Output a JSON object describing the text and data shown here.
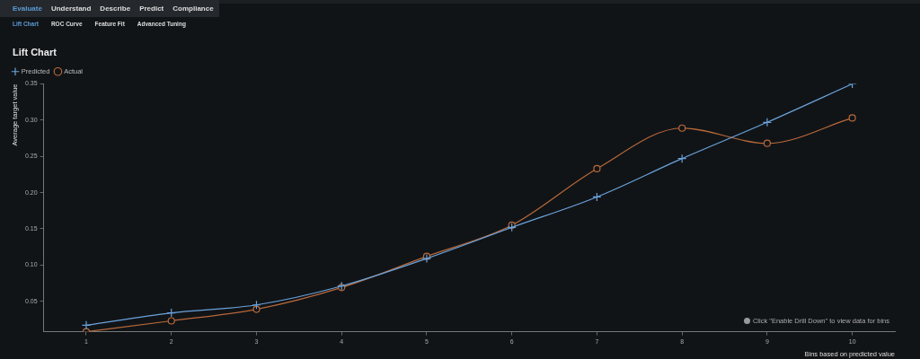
{
  "chart_data": {
    "type": "line",
    "title": "Lift Chart",
    "xlabel": "Bins based on predicted value",
    "ylabel": "Average target value",
    "categories": [
      "1",
      "2",
      "3",
      "4",
      "5",
      "6",
      "7",
      "8",
      "9",
      "10"
    ],
    "series": [
      {
        "name": "Predicted",
        "color": "#6aa3dc",
        "marker": "cross",
        "values": [
          0.017,
          0.034,
          0.045,
          0.071,
          0.109,
          0.152,
          0.194,
          0.247,
          0.297,
          0.35
        ]
      },
      {
        "name": "Actual",
        "color": "#b8693a",
        "marker": "circle",
        "values": [
          0.008,
          0.023,
          0.039,
          0.069,
          0.112,
          0.155,
          0.233,
          0.289,
          0.268,
          0.303
        ]
      }
    ],
    "ylim": [
      0.008,
      0.35
    ],
    "yticks": [
      0.05,
      {
        "value": 0.1,
        "label": "0.10"
      },
      0.15,
      {
        "value": 0.2,
        "label": "0.20"
      },
      0.25,
      {
        "value": 0.3,
        "label": "0.30"
      },
      0.35
    ],
    "grid": false,
    "legend": "top left",
    "annotations": [
      "Evaluate",
      "Understand",
      "Describe",
      "Predict",
      "Compliance",
      "Lift Chart",
      "ROC Curve",
      "Feature Fit",
      "Advanced Tuning",
      "Click \"Enable Drill Down\" to view data for bins"
    ]
  }
}
